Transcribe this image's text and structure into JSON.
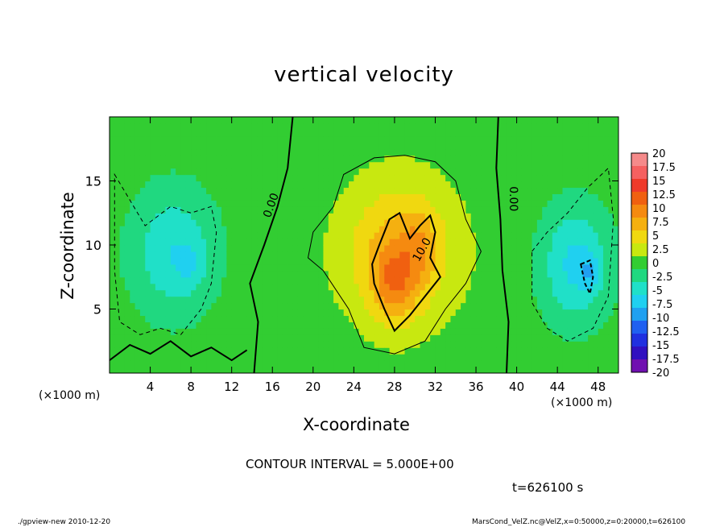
{
  "chart_data": {
    "type": "heatmap",
    "title": "vertical velocity",
    "xlabel": "X-coordinate",
    "ylabel": "Z-coordinate",
    "x_unit_left": "(×1000 m)",
    "x_unit_right": "(×1000 m)",
    "x_range": [
      0,
      50
    ],
    "y_range": [
      0,
      20
    ],
    "x_ticks": [
      "4",
      "8",
      "12",
      "16",
      "20",
      "24",
      "28",
      "32",
      "36",
      "40",
      "44",
      "48"
    ],
    "y_ticks": [
      "5",
      "10",
      "15"
    ],
    "colorbar": {
      "labels": [
        "20",
        "17.5",
        "15",
        "12.5",
        "10",
        "7.5",
        "5",
        "2.5",
        "0",
        "-2.5",
        "-5",
        "-7.5",
        "-10",
        "-12.5",
        "-15",
        "-17.5",
        "-20"
      ],
      "colors": [
        "#f58a8a",
        "#f56060",
        "#ef3a2a",
        "#f06010",
        "#f58a10",
        "#f5b010",
        "#f0d810",
        "#c8e810",
        "#32cd32",
        "#20d880",
        "#20e0c8",
        "#20d0f0",
        "#20a0f0",
        "#2060f0",
        "#2030e0",
        "#3010c0",
        "#7010b0"
      ]
    },
    "contour_labels": [
      "0.00",
      "0.00",
      "10.0"
    ],
    "fields": [
      {
        "cx": 6.3,
        "cz": 9.5,
        "sx": 4.2,
        "sz": 5.0,
        "w": -6.0
      },
      {
        "cx": 8.0,
        "cz": 8.5,
        "sx": 1.4,
        "sz": 1.6,
        "w": -2.5
      },
      {
        "cx": 45.8,
        "cz": 8.5,
        "sx": 3.4,
        "sz": 4.6,
        "w": -7.0
      },
      {
        "cx": 47.2,
        "cz": 8.0,
        "sx": 1.0,
        "sz": 1.4,
        "w": -3.5
      },
      {
        "cx": 28.5,
        "cz": 9.5,
        "sx": 5.5,
        "sz": 5.5,
        "w": 7.5
      },
      {
        "cx": 28.0,
        "cz": 7.0,
        "sx": 2.2,
        "sz": 3.0,
        "w": 6.0
      },
      {
        "cx": 30.5,
        "cz": 10.0,
        "sx": 1.6,
        "sz": 2.6,
        "w": 3.0
      }
    ],
    "contour_interval": 5.0
  },
  "annotations": {
    "contour_interval": "CONTOUR INTERVAL = 5.000E+00",
    "time": "t=626100 s",
    "footer_left": "./gpview-new   2010-12-20",
    "footer_right": "MarsCond_VelZ.nc@VelZ,x=0:50000,z=0:20000,t=626100"
  }
}
